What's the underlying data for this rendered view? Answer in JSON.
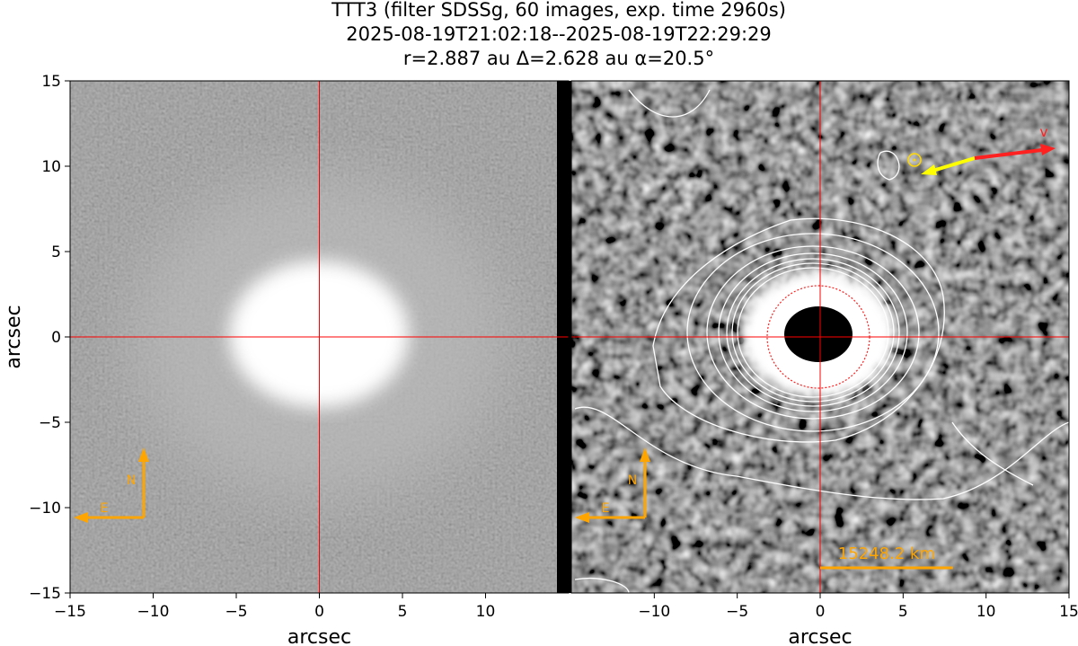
{
  "chart_data": [
    {
      "type": "image",
      "title": [
        "TTT3 (filter SDSSg, 60 images, exp. time 2960s)",
        "2025-08-19T21:02:18--2025-08-19T22:29:29",
        "r=2.887 au Δ=2.628 au α=20.5°"
      ],
      "xlabel": "arcsec",
      "ylabel": "arcsec",
      "xlim": [
        -15,
        15
      ],
      "ylim": [
        -15,
        15
      ],
      "xticks": [
        {
          "value": -15,
          "label": "−15"
        },
        {
          "value": -10,
          "label": "−10"
        },
        {
          "value": -5,
          "label": "−5"
        },
        0,
        5,
        10
      ],
      "yticks": [
        {
          "value": -15,
          "label": "−15"
        },
        {
          "value": -10,
          "label": "−10"
        },
        {
          "value": -5,
          "label": "−5"
        },
        0,
        5,
        10,
        15
      ],
      "crosshair": {
        "x": 0,
        "y": 0,
        "color": "#ff0000"
      },
      "compass": {
        "north": "N",
        "east": "E",
        "color": "#ffa500"
      }
    },
    {
      "type": "image",
      "xlabel": "arcsec",
      "xlim": [
        -15,
        15
      ],
      "ylim": [
        -15,
        15
      ],
      "xticks": [
        {
          "value": -10,
          "label": "−10"
        },
        {
          "value": -5,
          "label": "−5"
        },
        0,
        5,
        10,
        15
      ],
      "crosshair": {
        "x": 0,
        "y": 0,
        "color": "#ff0000"
      },
      "compass": {
        "north": "N",
        "east": "E",
        "color": "#ffa500"
      },
      "velocity_label": "v",
      "scalebar": {
        "label": "15248.2 km",
        "x": [
          0,
          8
        ],
        "color": "#ffa500"
      }
    }
  ]
}
